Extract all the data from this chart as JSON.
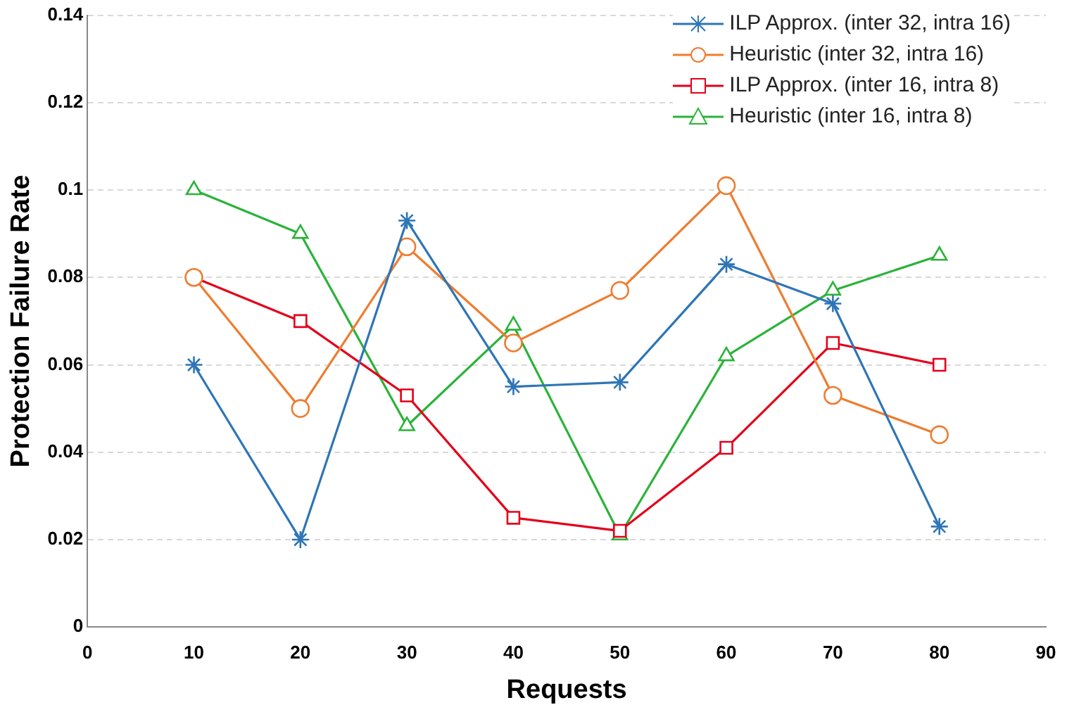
{
  "chart_data": {
    "type": "line",
    "xlabel": "Requests",
    "ylabel": "Protection Failure Rate",
    "x": [
      10,
      20,
      30,
      40,
      50,
      60,
      70,
      80
    ],
    "series": [
      {
        "name": "ILP Approx. (inter 32, intra 16)",
        "color": "#2e75b6",
        "marker": "cross",
        "values": [
          0.06,
          0.02,
          0.093,
          0.055,
          0.056,
          0.083,
          0.074,
          0.023
        ]
      },
      {
        "name": "Heuristic (inter 32, intra 16)",
        "color": "#ed7d31",
        "marker": "circle",
        "values": [
          0.08,
          0.05,
          0.087,
          0.065,
          0.077,
          0.101,
          0.053,
          0.044
        ]
      },
      {
        "name": "ILP Approx. (inter 16, intra 8)",
        "color": "#e3001b",
        "marker": "square",
        "values": [
          0.08,
          0.07,
          0.053,
          0.025,
          0.022,
          0.041,
          0.065,
          0.06
        ]
      },
      {
        "name": "Heuristic (inter 16, intra 8)",
        "color": "#2bb33a",
        "marker": "triangle",
        "values": [
          0.1,
          0.09,
          0.046,
          0.069,
          0.021,
          0.062,
          0.077,
          0.085
        ]
      }
    ],
    "xlim": [
      0,
      90
    ],
    "xticks": [
      0,
      10,
      20,
      30,
      40,
      50,
      60,
      70,
      80,
      90
    ],
    "ylim": [
      0,
      0.14
    ],
    "yticks": [
      0,
      0.02,
      0.04,
      0.06,
      0.08,
      0.1,
      0.12,
      0.14
    ],
    "grid": "y",
    "legend": "top right",
    "line_style": "solid"
  }
}
